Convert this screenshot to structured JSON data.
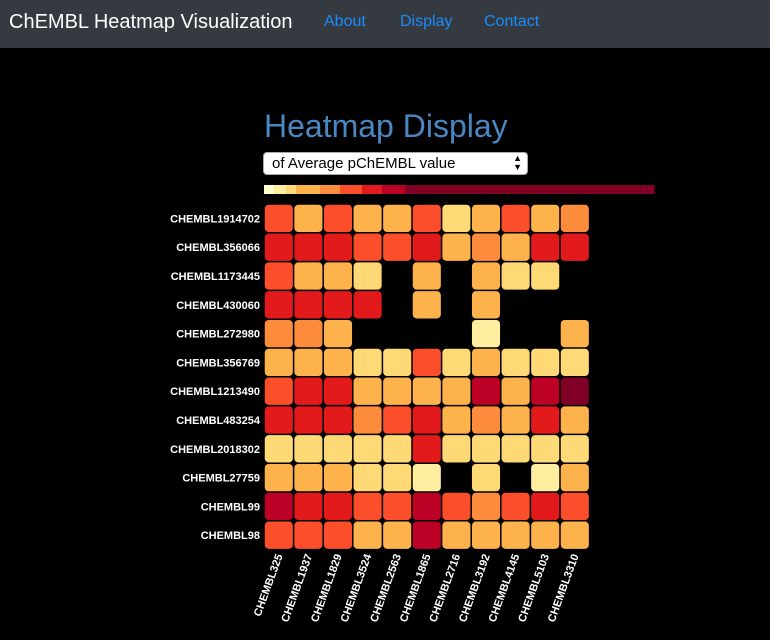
{
  "navbar": {
    "brand": "ChEMBL Heatmap Visualization",
    "links": [
      {
        "label": "About"
      },
      {
        "label": "Display"
      },
      {
        "label": "Contact"
      }
    ]
  },
  "page": {
    "title": "Heatmap Display"
  },
  "metric_select": {
    "selected": "of Average pChEMBL value"
  },
  "colors": {
    "navbar_bg": "#343a40",
    "link": "#1a8cff",
    "title": "#4a86c2",
    "background": "#000000"
  },
  "chart_data": {
    "type": "heatmap",
    "color_scale": [
      "#ffffcc",
      "#ffeda0",
      "#fed976",
      "#feb24c",
      "#fd8d3c",
      "#fc4e2a",
      "#e31a1c",
      "#bd0026",
      "#800026"
    ],
    "rows": [
      "CHEMBL1914702",
      "CHEMBL356066",
      "CHEMBL1173445",
      "CHEMBL430060",
      "CHEMBL272980",
      "CHEMBL356769",
      "CHEMBL1213490",
      "CHEMBL483254",
      "CHEMBL2018302",
      "CHEMBL27759",
      "CHEMBL99",
      "CHEMBL98"
    ],
    "columns": [
      "CHEMBL325",
      "CHEMBL1937",
      "CHEMBL1829",
      "CHEMBL3524",
      "CHEMBL2563",
      "CHEMBL1865",
      "CHEMBL2716",
      "CHEMBL3192",
      "CHEMBL4145",
      "CHEMBL5103",
      "CHEMBL3310"
    ],
    "values": [
      [
        4,
        3,
        4.5,
        3,
        2.5,
        4.5,
        2,
        3,
        4.5,
        3,
        3.5
      ],
      [
        5.5,
        5.5,
        5.5,
        4.5,
        4,
        5.5,
        3,
        3.5,
        3,
        5,
        5.5
      ],
      [
        4,
        3,
        3,
        2,
        null,
        2.5,
        null,
        2.5,
        1.5,
        2,
        null
      ],
      [
        5,
        5.5,
        5.5,
        5,
        null,
        2.5,
        null,
        3,
        null,
        null,
        null
      ],
      [
        3.5,
        3.5,
        2.5,
        null,
        null,
        null,
        null,
        0.5,
        null,
        null,
        2.5
      ],
      [
        2.5,
        2.5,
        2.5,
        1.5,
        2,
        4,
        1.5,
        2.5,
        2,
        2,
        2
      ],
      [
        4.5,
        5.5,
        5.5,
        3,
        3,
        3,
        2.5,
        6.5,
        3,
        6,
        7
      ],
      [
        5.5,
        5.5,
        5.5,
        3.5,
        4,
        5,
        2.5,
        3.5,
        3,
        5,
        3
      ],
      [
        1.5,
        1.5,
        2,
        1.5,
        1.5,
        5,
        2,
        2,
        2,
        1.5,
        1.5
      ],
      [
        3,
        2.5,
        2.5,
        1.5,
        2,
        1,
        null,
        1.5,
        null,
        1,
        2.5
      ],
      [
        6,
        5.5,
        5.5,
        4,
        4,
        6,
        4,
        3.5,
        4,
        5.5,
        4.5
      ],
      [
        4.5,
        4.5,
        4,
        3,
        3,
        6,
        2.5,
        3,
        3,
        3,
        3
      ]
    ]
  }
}
